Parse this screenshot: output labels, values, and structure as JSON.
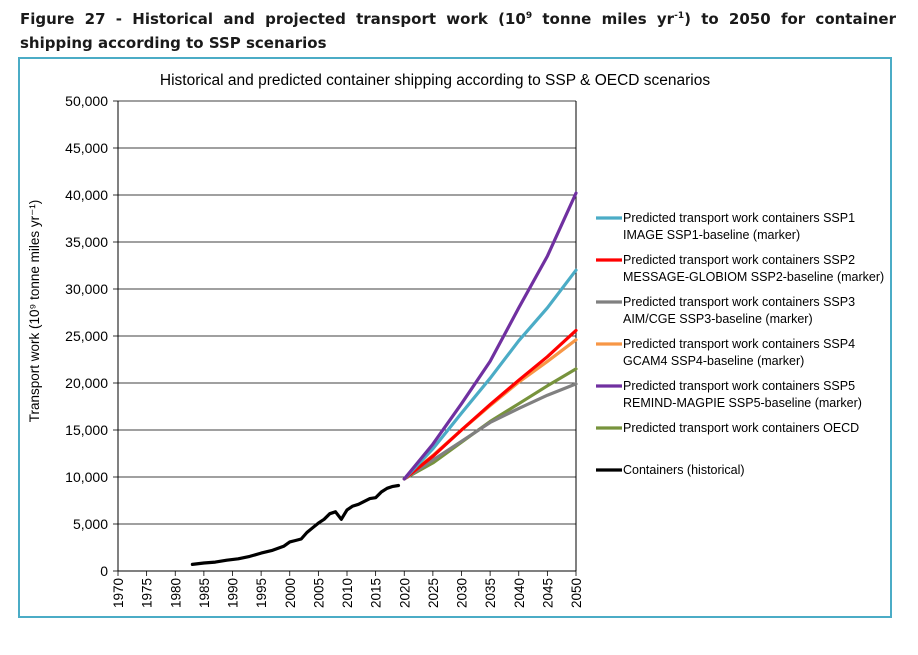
{
  "caption": {
    "prefix": "Figure 27 - Historical and projected transport work (10",
    "sup1": "9",
    "mid": " tonne miles yr",
    "sup2": "-1",
    "suffix": ") to 2050 for container shipping according to SSP scenarios"
  },
  "chart_data": {
    "type": "line",
    "title": "Historical and predicted container shipping according to SSP & OECD scenarios",
    "ylabel": "Transport work (10⁹ tonne miles yr⁻¹)",
    "xlim": [
      1970,
      2050
    ],
    "ylim": [
      0,
      50000
    ],
    "grid": "horizontal",
    "legend_position": "right",
    "x_ticks": [
      "1970",
      "1975",
      "1980",
      "1985",
      "1990",
      "1995",
      "2000",
      "2005",
      "2010",
      "2015",
      "2020",
      "2025",
      "2030",
      "2035",
      "2040",
      "2045",
      "2050"
    ],
    "y_ticks": [
      "0",
      "5,000",
      "10,000",
      "15,000",
      "20,000",
      "25,000",
      "30,000",
      "35,000",
      "40,000",
      "45,000",
      "50,000"
    ],
    "series": [
      {
        "name": "Predicted transport work containers SSP1",
        "name2": "IMAGE SSP1-baseline (marker)",
        "color": "#4bacc6",
        "x": [
          2020,
          2025,
          2030,
          2035,
          2040,
          2045,
          2050
        ],
        "y": [
          9800,
          13000,
          16800,
          20500,
          24500,
          28000,
          32000
        ]
      },
      {
        "name": "Predicted transport work containers SSP2",
        "name2": "MESSAGE-GLOBIOM SSP2-baseline (marker)",
        "color": "#ff0000",
        "x": [
          2020,
          2025,
          2030,
          2035,
          2040,
          2045,
          2050
        ],
        "y": [
          9800,
          12200,
          15000,
          17700,
          20300,
          22800,
          25600
        ]
      },
      {
        "name": "Predicted transport work containers SSP3",
        "name2": "AIM/CGE SSP3-baseline (marker)",
        "color": "#808080",
        "x": [
          2020,
          2025,
          2030,
          2035,
          2040,
          2045,
          2050
        ],
        "y": [
          9800,
          11800,
          13800,
          15800,
          17300,
          18700,
          19900
        ]
      },
      {
        "name": "Predicted transport work containers SSP4",
        "name2": "GCAM4 SSP4-baseline (marker)",
        "color": "#f79646",
        "x": [
          2020,
          2025,
          2030,
          2035,
          2040,
          2045,
          2050
        ],
        "y": [
          9800,
          12300,
          15000,
          17600,
          20100,
          22300,
          24600
        ]
      },
      {
        "name": "Predicted transport work containers SSP5",
        "name2": "REMIND-MAGPIE SSP5-baseline (marker)",
        "color": "#7030a0",
        "x": [
          2020,
          2025,
          2030,
          2035,
          2040,
          2045,
          2050
        ],
        "y": [
          9800,
          13500,
          17800,
          22300,
          28000,
          33500,
          40200
        ]
      },
      {
        "name": "Predicted transport work containers OECD",
        "name2": "",
        "color": "#77933c",
        "x": [
          2020,
          2025,
          2030,
          2035,
          2040,
          2045,
          2050
        ],
        "y": [
          9800,
          11500,
          13700,
          15900,
          17800,
          19700,
          21500
        ]
      },
      {
        "name": "Containers (historical)",
        "name2": "",
        "color": "#000000",
        "x": [
          1983,
          1985,
          1987,
          1989,
          1991,
          1993,
          1995,
          1997,
          1999,
          2000,
          2001,
          2002,
          2003,
          2004,
          2005,
          2006,
          2007,
          2008,
          2009,
          2010,
          2011,
          2012,
          2013,
          2014,
          2015,
          2016,
          2017,
          2018,
          2019
        ],
        "y": [
          700,
          850,
          950,
          1150,
          1300,
          1550,
          1900,
          2200,
          2650,
          3100,
          3250,
          3400,
          4100,
          4600,
          5100,
          5500,
          6100,
          6300,
          5500,
          6500,
          6900,
          7100,
          7400,
          7700,
          7800,
          8400,
          8800,
          9000,
          9100
        ]
      }
    ]
  }
}
